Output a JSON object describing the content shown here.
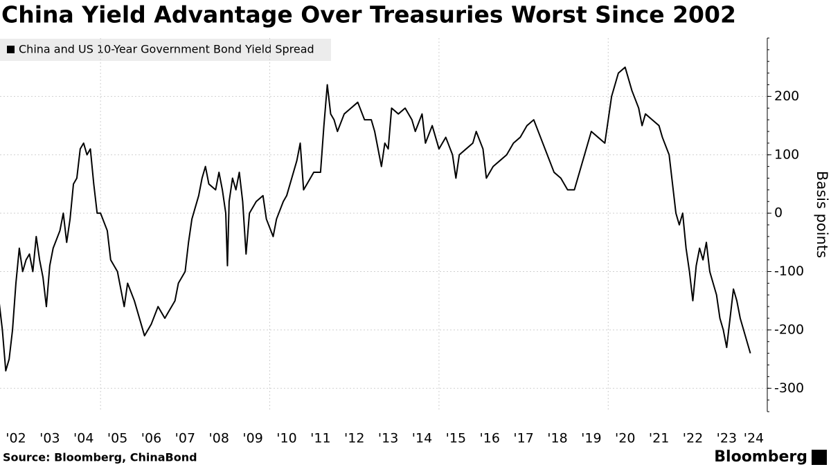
{
  "chart_data": {
    "type": "line",
    "title": "China Yield Advantage Over Treasuries Worst Since 2002",
    "y_axis_label": "Basis points",
    "source": "Source: Bloomberg, ChinaBond",
    "brand": "Bloomberg",
    "xlim": [
      2002.03,
      2024.7
    ],
    "ylim": [
      -340,
      300
    ],
    "yticks": [
      200,
      100,
      0,
      -100,
      -200,
      -300
    ],
    "xticks": [
      {
        "value": 2002.5,
        "label": "'02"
      },
      {
        "value": 2003.5,
        "label": "'03"
      },
      {
        "value": 2004.5,
        "label": "'04"
      },
      {
        "value": 2005.5,
        "label": "'05"
      },
      {
        "value": 2006.5,
        "label": "'06"
      },
      {
        "value": 2007.5,
        "label": "'07"
      },
      {
        "value": 2008.5,
        "label": "'08"
      },
      {
        "value": 2009.5,
        "label": "'09"
      },
      {
        "value": 2010.5,
        "label": "'10"
      },
      {
        "value": 2011.5,
        "label": "'11"
      },
      {
        "value": 2012.5,
        "label": "'12"
      },
      {
        "value": 2013.5,
        "label": "'13"
      },
      {
        "value": 2014.5,
        "label": "'14"
      },
      {
        "value": 2015.5,
        "label": "'15"
      },
      {
        "value": 2016.5,
        "label": "'16"
      },
      {
        "value": 2017.5,
        "label": "'17"
      },
      {
        "value": 2018.5,
        "label": "'18"
      },
      {
        "value": 2019.5,
        "label": "'19"
      },
      {
        "value": 2020.5,
        "label": "'20"
      },
      {
        "value": 2021.5,
        "label": "'21"
      },
      {
        "value": 2022.5,
        "label": "'22"
      },
      {
        "value": 2023.5,
        "label": "'23"
      },
      {
        "value": 2024.3,
        "label": "'24"
      }
    ],
    "xgrid": [
      2005,
      2010,
      2015,
      2020
    ],
    "grid": true,
    "legend": "top-left",
    "x": [
      2002.0,
      2002.1,
      2002.2,
      2002.3,
      2002.4,
      2002.5,
      2002.6,
      2002.7,
      2002.8,
      2002.9,
      2003.0,
      2003.1,
      2003.2,
      2003.3,
      2003.4,
      2003.5,
      2003.6,
      2003.8,
      2003.9,
      2004.0,
      2004.1,
      2004.2,
      2004.3,
      2004.4,
      2004.5,
      2004.6,
      2004.7,
      2004.8,
      2004.9,
      2005.0,
      2005.2,
      2005.3,
      2005.5,
      2005.7,
      2005.8,
      2006.0,
      2006.2,
      2006.3,
      2006.5,
      2006.7,
      2006.9,
      2007.0,
      2007.2,
      2007.3,
      2007.5,
      2007.6,
      2007.7,
      2007.9,
      2008.0,
      2008.1,
      2008.2,
      2008.4,
      2008.5,
      2008.6,
      2008.7,
      2008.75,
      2008.8,
      2008.9,
      2009.0,
      2009.1,
      2009.2,
      2009.3,
      2009.4,
      2009.6,
      2009.8,
      2009.9,
      2010.1,
      2010.2,
      2010.4,
      2010.5,
      2010.7,
      2010.8,
      2010.9,
      2011.0,
      2011.1,
      2011.3,
      2011.5,
      2011.6,
      2011.7,
      2011.8,
      2011.9,
      2012.0,
      2012.2,
      2012.4,
      2012.6,
      2012.8,
      2013.0,
      2013.1,
      2013.3,
      2013.4,
      2013.5,
      2013.6,
      2013.8,
      2014.0,
      2014.2,
      2014.3,
      2014.5,
      2014.6,
      2014.8,
      2015.0,
      2015.2,
      2015.4,
      2015.5,
      2015.6,
      2015.8,
      2016.0,
      2016.1,
      2016.3,
      2016.4,
      2016.6,
      2016.8,
      2017.0,
      2017.2,
      2017.4,
      2017.6,
      2017.8,
      2018.0,
      2018.2,
      2018.4,
      2018.6,
      2018.8,
      2019.0,
      2019.2,
      2019.4,
      2019.5,
      2019.7,
      2019.9,
      2020.0,
      2020.1,
      2020.3,
      2020.5,
      2020.6,
      2020.7,
      2020.9,
      2021.0,
      2021.1,
      2021.3,
      2021.5,
      2021.6,
      2021.8,
      2021.9,
      2022.0,
      2022.1,
      2022.2,
      2022.3,
      2022.4,
      2022.5,
      2022.6,
      2022.7,
      2022.8,
      2022.9,
      2023.0,
      2023.1,
      2023.2,
      2023.3,
      2023.4,
      2023.5,
      2023.6,
      2023.7,
      2023.8,
      2023.9,
      2024.0,
      2024.2
    ],
    "series": [
      {
        "name": "China and US 10-Year Government Bond Yield Spread",
        "color": "#000000",
        "values": [
          -150,
          -200,
          -270,
          -250,
          -200,
          -120,
          -60,
          -100,
          -80,
          -70,
          -100,
          -40,
          -80,
          -110,
          -160,
          -90,
          -60,
          -30,
          0,
          -50,
          -10,
          50,
          60,
          110,
          120,
          100,
          110,
          50,
          0,
          0,
          -30,
          -80,
          -100,
          -160,
          -120,
          -150,
          -190,
          -210,
          -190,
          -160,
          -180,
          -170,
          -150,
          -120,
          -100,
          -50,
          -10,
          30,
          60,
          80,
          50,
          40,
          70,
          40,
          0,
          -90,
          20,
          60,
          40,
          70,
          20,
          -70,
          0,
          20,
          30,
          -10,
          -40,
          -10,
          20,
          30,
          70,
          90,
          120,
          40,
          50,
          70,
          70,
          150,
          220,
          170,
          160,
          140,
          170,
          180,
          190,
          160,
          160,
          140,
          80,
          120,
          110,
          180,
          170,
          180,
          160,
          140,
          170,
          120,
          150,
          110,
          130,
          100,
          60,
          100,
          110,
          120,
          140,
          110,
          60,
          80,
          90,
          100,
          120,
          130,
          150,
          160,
          130,
          100,
          70,
          60,
          40,
          40,
          80,
          120,
          140,
          130,
          120,
          160,
          200,
          240,
          250,
          230,
          210,
          180,
          150,
          170,
          160,
          150,
          130,
          100,
          50,
          0,
          -20,
          0,
          -60,
          -100,
          -150,
          -90,
          -60,
          -80,
          -50,
          -100,
          -120,
          -140,
          -180,
          -200,
          -230,
          -180,
          -130,
          -150,
          -180,
          -200,
          -240
        ]
      }
    ]
  }
}
